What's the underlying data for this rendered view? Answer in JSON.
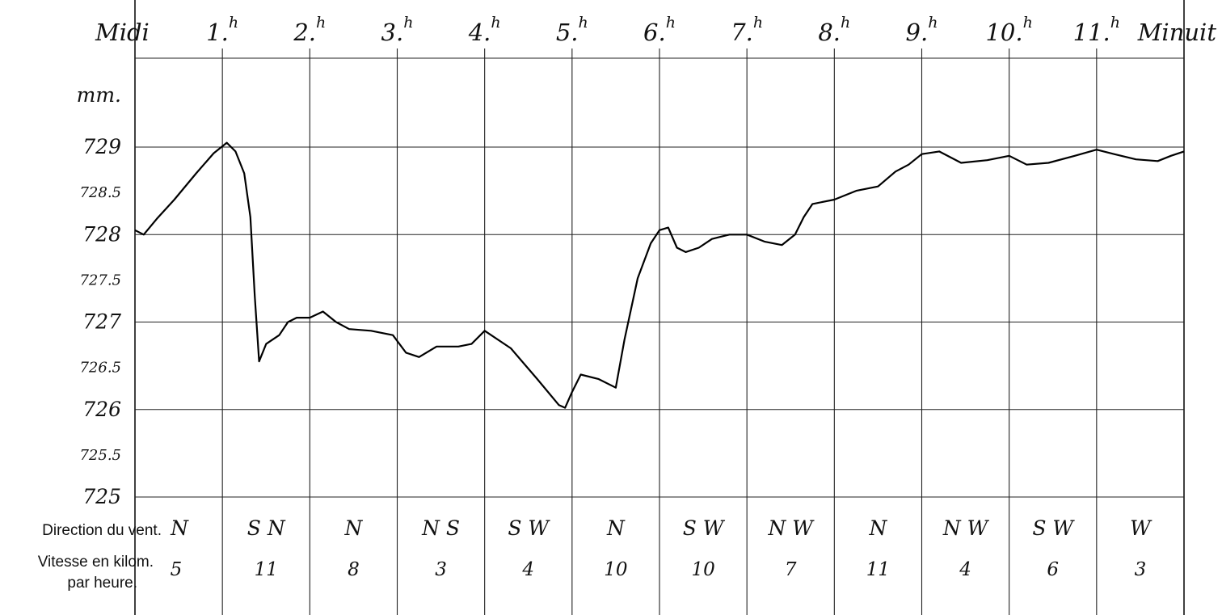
{
  "chart_data": {
    "type": "line",
    "x_categories": [
      "Midi",
      "1.h",
      "2.h",
      "3.h",
      "4.h",
      "5.h",
      "6.h",
      "7.h",
      "8.h",
      "9.h",
      "10.h",
      "11.h",
      "Minuit"
    ],
    "hour_labels": [
      {
        "main": "Midi",
        "sup": ""
      },
      {
        "main": "1.",
        "sup": "h"
      },
      {
        "main": "2.",
        "sup": "h"
      },
      {
        "main": "3.",
        "sup": "h"
      },
      {
        "main": "4.",
        "sup": "h"
      },
      {
        "main": "5.",
        "sup": "h"
      },
      {
        "main": "6.",
        "sup": "h"
      },
      {
        "main": "7.",
        "sup": "h"
      },
      {
        "main": "8.",
        "sup": "h"
      },
      {
        "main": "9.",
        "sup": "h"
      },
      {
        "main": "10.",
        "sup": "h"
      },
      {
        "main": "11.",
        "sup": "h"
      },
      {
        "main": "Minuit",
        "sup": ""
      }
    ],
    "ylabel": "mm.",
    "ylim": [
      725,
      729.6
    ],
    "y_ticks": [
      {
        "value": 729,
        "label": "729",
        "major": true
      },
      {
        "value": 728.5,
        "label": "728.5",
        "major": false
      },
      {
        "value": 728,
        "label": "728",
        "major": true
      },
      {
        "value": 727.5,
        "label": "727.5",
        "major": false
      },
      {
        "value": 727,
        "label": "727",
        "major": true
      },
      {
        "value": 726.5,
        "label": "726.5",
        "major": false
      },
      {
        "value": 726,
        "label": "726",
        "major": true
      },
      {
        "value": 725.5,
        "label": "725.5",
        "major": false
      },
      {
        "value": 725,
        "label": "725",
        "major": true
      }
    ],
    "grid": true,
    "series": [
      {
        "points": [
          [
            0.0,
            728.05
          ],
          [
            0.1,
            728.0
          ],
          [
            0.25,
            728.18
          ],
          [
            0.45,
            728.4
          ],
          [
            0.7,
            728.7
          ],
          [
            0.9,
            728.93
          ],
          [
            1.05,
            729.05
          ],
          [
            1.15,
            728.95
          ],
          [
            1.25,
            728.7
          ],
          [
            1.32,
            728.2
          ],
          [
            1.37,
            727.3
          ],
          [
            1.42,
            726.55
          ],
          [
            1.5,
            726.75
          ],
          [
            1.65,
            726.85
          ],
          [
            1.75,
            727.0
          ],
          [
            1.85,
            727.05
          ],
          [
            2.0,
            727.05
          ],
          [
            2.15,
            727.12
          ],
          [
            2.3,
            727.0
          ],
          [
            2.45,
            726.92
          ],
          [
            2.7,
            726.9
          ],
          [
            2.95,
            726.85
          ],
          [
            3.1,
            726.65
          ],
          [
            3.25,
            726.6
          ],
          [
            3.45,
            726.72
          ],
          [
            3.7,
            726.72
          ],
          [
            3.85,
            726.75
          ],
          [
            4.0,
            726.9
          ],
          [
            4.3,
            726.7
          ],
          [
            4.6,
            726.35
          ],
          [
            4.85,
            726.05
          ],
          [
            4.92,
            726.02
          ],
          [
            5.0,
            726.2
          ],
          [
            5.1,
            726.4
          ],
          [
            5.3,
            726.35
          ],
          [
            5.5,
            726.25
          ],
          [
            5.6,
            726.8
          ],
          [
            5.75,
            727.5
          ],
          [
            5.9,
            727.9
          ],
          [
            6.0,
            728.05
          ],
          [
            6.1,
            728.08
          ],
          [
            6.2,
            727.85
          ],
          [
            6.3,
            727.8
          ],
          [
            6.45,
            727.85
          ],
          [
            6.6,
            727.95
          ],
          [
            6.8,
            728.0
          ],
          [
            7.0,
            728.0
          ],
          [
            7.2,
            727.92
          ],
          [
            7.4,
            727.88
          ],
          [
            7.55,
            728.0
          ],
          [
            7.65,
            728.2
          ],
          [
            7.75,
            728.35
          ],
          [
            8.0,
            728.4
          ],
          [
            8.25,
            728.5
          ],
          [
            8.5,
            728.55
          ],
          [
            8.7,
            728.72
          ],
          [
            8.85,
            728.8
          ],
          [
            9.0,
            728.92
          ],
          [
            9.2,
            728.95
          ],
          [
            9.45,
            728.82
          ],
          [
            9.75,
            728.85
          ],
          [
            10.0,
            728.9
          ],
          [
            10.2,
            728.8
          ],
          [
            10.45,
            728.82
          ],
          [
            10.75,
            728.9
          ],
          [
            11.0,
            728.97
          ],
          [
            11.2,
            728.92
          ],
          [
            11.45,
            728.86
          ],
          [
            11.7,
            728.84
          ],
          [
            11.85,
            728.9
          ],
          [
            12.0,
            728.95
          ]
        ]
      }
    ],
    "wind_table": {
      "direction_label": "Direction du vent.",
      "speed_label_line1": "Vitesse en kilom.",
      "speed_label_line2": "par heure.",
      "directions": [
        "N",
        "S N",
        "N",
        "N S",
        "S W",
        "N",
        "S W",
        "N W",
        "N",
        "N W",
        "S W",
        "W"
      ],
      "speeds": [
        "5",
        "11",
        "8",
        "3",
        "4",
        "10",
        "10",
        "7",
        "11",
        "4",
        "6",
        "3"
      ]
    }
  }
}
